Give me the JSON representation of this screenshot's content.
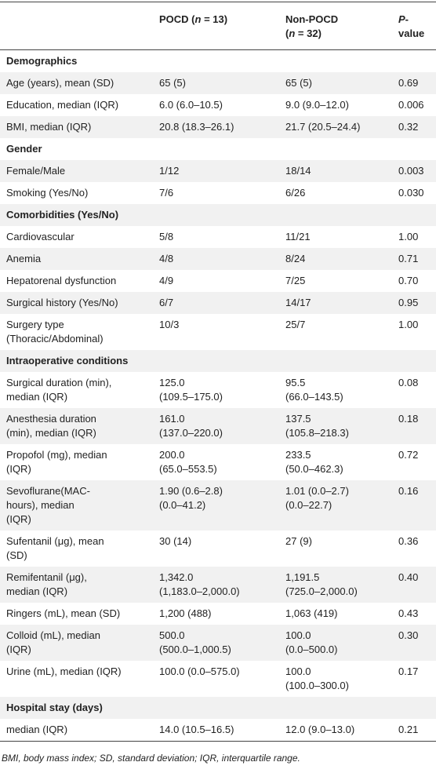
{
  "header": {
    "columns": [
      [
        ""
      ],
      [
        "POCD (",
        "n",
        " = 13)"
      ],
      [
        "Non-POCD\n(",
        "n",
        " = 32)"
      ],
      [
        "P",
        "-\nvalue"
      ]
    ]
  },
  "table": {
    "rows": [
      {
        "section": "Demographics"
      },
      {
        "cells": [
          "Age (years), mean (SD)",
          "65 (5)",
          "65 (5)",
          "0.69"
        ]
      },
      {
        "cells": [
          "Education, median (IQR)",
          "6.0 (6.0–10.5)",
          "9.0 (9.0–12.0)",
          "0.006"
        ]
      },
      {
        "cells": [
          "BMI, median (IQR)",
          "20.8 (18.3–26.1)",
          "21.7 (20.5–24.4)",
          "0.32"
        ]
      },
      {
        "section": "Gender"
      },
      {
        "cells": [
          "Female/Male",
          "1/12",
          "18/14",
          "0.003"
        ]
      },
      {
        "cells": [
          "Smoking (Yes/No)",
          "7/6",
          "6/26",
          "0.030"
        ]
      },
      {
        "section": "Comorbidities (Yes/No)"
      },
      {
        "cells": [
          "Cardiovascular",
          "5/8",
          "11/21",
          "1.00"
        ]
      },
      {
        "cells": [
          "Anemia",
          "4/8",
          "8/24",
          "0.71"
        ]
      },
      {
        "cells": [
          "Hepatorenal dysfunction",
          "4/9",
          "7/25",
          "0.70"
        ]
      },
      {
        "cells": [
          "Surgical history (Yes/No)",
          "6/7",
          "14/17",
          "0.95"
        ]
      },
      {
        "cells": [
          "Surgery type\n(Thoracic/Abdominal)",
          "10/3",
          "25/7",
          "1.00"
        ]
      },
      {
        "section": "Intraoperative conditions"
      },
      {
        "cells": [
          "Surgical duration (min),\nmedian (IQR)",
          "125.0\n(109.5–175.0)",
          "95.5\n(66.0–143.5)",
          "0.08"
        ]
      },
      {
        "cells": [
          "Anesthesia duration\n(min), median (IQR)",
          "161.0\n(137.0–220.0)",
          "137.5\n(105.8–218.3)",
          "0.18"
        ]
      },
      {
        "cells": [
          "Propofol (mg), median\n(IQR)",
          "200.0\n(65.0–553.5)",
          "233.5\n(50.0–462.3)",
          "0.72"
        ]
      },
      {
        "cells": [
          "Sevoflurane(MAC-\nhours), median\n(IQR)",
          "1.90 (0.6–2.8)\n(0.0–41.2)",
          "1.01 (0.0–2.7)\n(0.0–22.7)",
          "0.16"
        ]
      },
      {
        "cells": [
          "Sufentanil (μg), mean\n(SD)",
          "30 (14)",
          "27 (9)",
          "0.36"
        ]
      },
      {
        "cells": [
          "Remifentanil (μg),\nmedian (IQR)",
          "1,342.0\n(1,183.0–2,000.0)",
          "1,191.5\n(725.0–2,000.0)",
          "0.40"
        ]
      },
      {
        "cells": [
          "Ringers (mL), mean (SD)",
          "1,200 (488)",
          "1,063 (419)",
          "0.43"
        ]
      },
      {
        "cells": [
          "Colloid (mL), median\n(IQR)",
          "500.0\n(500.0–1,000.5)",
          "100.0\n(0.0–500.0)",
          "0.30"
        ]
      },
      {
        "cells": [
          "Urine (mL), median (IQR)",
          "100.0 (0.0–575.0)",
          "100.0\n(100.0–300.0)",
          "0.17"
        ]
      },
      {
        "section": "Hospital stay (days)"
      },
      {
        "cells": [
          "median (IQR)",
          "14.0 (10.5–16.5)",
          "12.0 (9.0–13.0)",
          "0.21"
        ]
      }
    ]
  },
  "footnote": "BMI, body mass index; SD, standard deviation; IQR, interquartile range."
}
